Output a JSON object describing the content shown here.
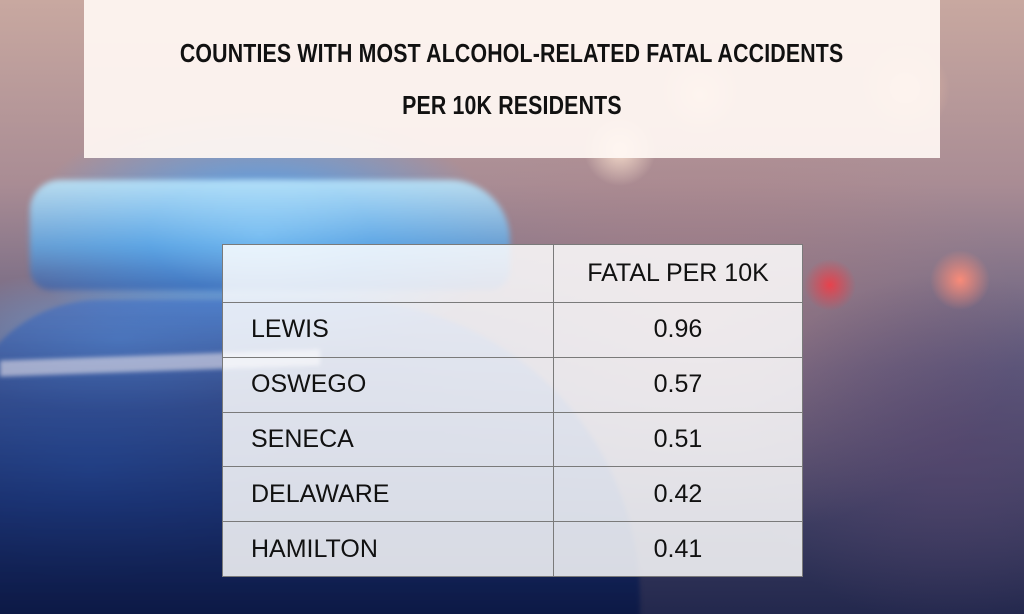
{
  "title": {
    "line1": "COUNTIES WITH MOST ALCOHOL-RELATED FATAL ACCIDENTS",
    "line2": "PER 10K RESIDENTS"
  },
  "table": {
    "headers": [
      "",
      "FATAL PER 10K"
    ],
    "rows": [
      {
        "county": "LEWIS",
        "value": "0.96"
      },
      {
        "county": "OSWEGO",
        "value": "0.57"
      },
      {
        "county": "SENECA",
        "value": "0.51"
      },
      {
        "county": "DELAWARE",
        "value": "0.42"
      },
      {
        "county": "HAMILTON",
        "value": "0.41"
      }
    ]
  },
  "colors": {
    "panel_background": "#fff8f3",
    "text": "#111111",
    "table_border": "#7a7a7a"
  }
}
